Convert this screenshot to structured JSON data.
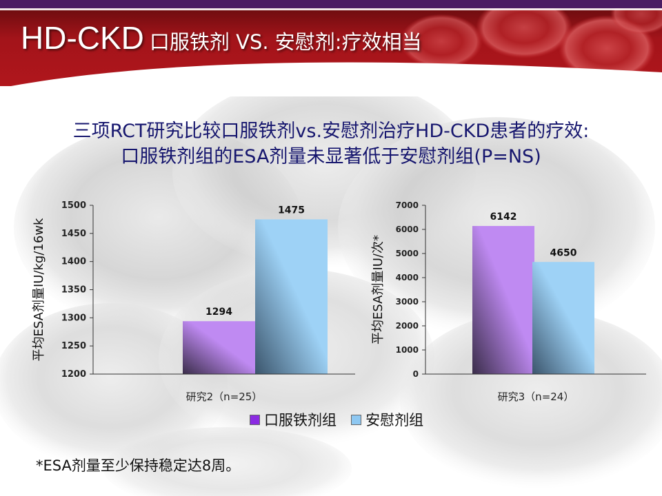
{
  "slide": {
    "title_main": "HD-CKD",
    "title_rest": "口服铁剂 VS. 安慰剂:疗效相当",
    "headline_line1": "三项RCT研究比较口服铁剂vs.安慰剂治疗HD-CKD患者的疗效:",
    "headline_line2": "口服铁剂组的ESA剂量未显著低于安慰剂组(P=NS)",
    "footnote": "*ESA剂量至少保持稳定达8周。"
  },
  "colors": {
    "header_red": "#a3141a",
    "header_purple": "#4b1c63",
    "headline_text": "#16166e",
    "oral_iron": "#bf8af2",
    "placebo": "#9ed2f6"
  },
  "legend": [
    {
      "label": "口服铁剂组",
      "color": "#8b2be2"
    },
    {
      "label": "安慰剂组",
      "color": "#8ec8f2"
    }
  ],
  "chart_data": [
    {
      "type": "bar",
      "ylabel": "平均ESA剂量IU/kg/16wk",
      "xlabel": "研究2（n=25）",
      "ylim": [
        1200,
        1500
      ],
      "yticks": [
        1200,
        1250,
        1300,
        1350,
        1400,
        1450,
        1500
      ],
      "series": [
        {
          "name": "口服铁剂组",
          "values": [
            1294
          ]
        },
        {
          "name": "安慰剂组",
          "values": [
            1475
          ]
        }
      ],
      "data_labels": [
        "1294",
        "1475"
      ],
      "grid": false,
      "legend": "bottom"
    },
    {
      "type": "bar",
      "ylabel": "平均ESA剂量IU/次*",
      "xlabel": "研究3（n=24）",
      "ylim": [
        0,
        7000
      ],
      "yticks": [
        0,
        1000,
        2000,
        3000,
        4000,
        5000,
        6000,
        7000
      ],
      "series": [
        {
          "name": "口服铁剂组",
          "values": [
            6142
          ]
        },
        {
          "name": "安慰剂组",
          "values": [
            4650
          ]
        }
      ],
      "data_labels": [
        "6142",
        "4650"
      ],
      "grid": false,
      "legend": "bottom"
    }
  ]
}
